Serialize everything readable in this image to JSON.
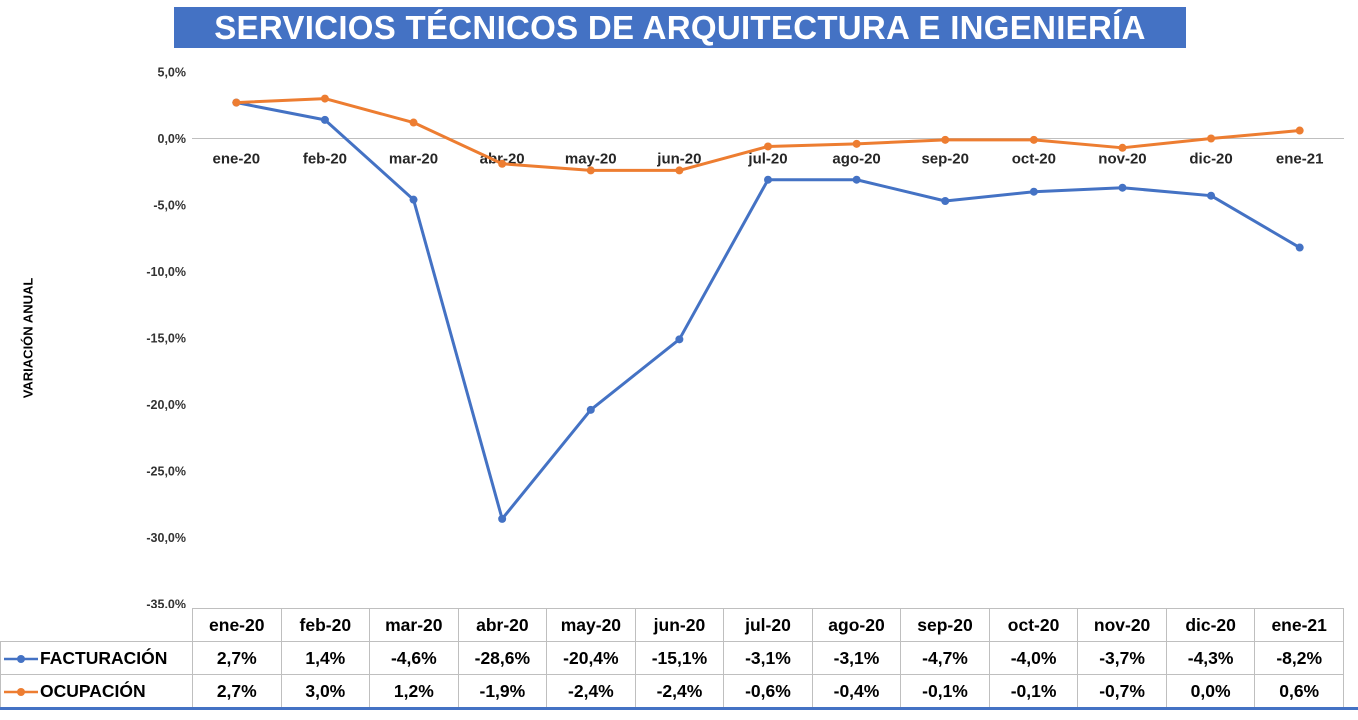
{
  "colors": {
    "accent_blue": "#4472C4",
    "accent_orange": "#ED7D31",
    "title_bg": "#4472C4",
    "title_text": "#FFFFFF",
    "axis_line": "#BFBFBF",
    "table_border": "#BFBFBF"
  },
  "chart_data": {
    "type": "line",
    "title": "SERVICIOS TÉCNICOS DE ARQUITECTURA E INGENIERÍA",
    "categories": [
      "ene-20",
      "feb-20",
      "mar-20",
      "abr-20",
      "may-20",
      "jun-20",
      "jul-20",
      "ago-20",
      "sep-20",
      "oct-20",
      "nov-20",
      "dic-20",
      "ene-21"
    ],
    "series": [
      {
        "key": "facturacion",
        "name": "FACTURACIÓN",
        "color": "#4472C4",
        "values": [
          2.7,
          1.4,
          -4.6,
          -28.6,
          -20.4,
          -15.1,
          -3.1,
          -3.1,
          -4.7,
          -4.0,
          -3.7,
          -4.3,
          -8.2
        ],
        "labels": [
          "2,7%",
          "1,4%",
          "-4,6%",
          "-28,6%",
          "-20,4%",
          "-15,1%",
          "-3,1%",
          "-3,1%",
          "-4,7%",
          "-4,0%",
          "-3,7%",
          "-4,3%",
          "-8,2%"
        ]
      },
      {
        "key": "ocupacion",
        "name": "OCUPACIÓN",
        "color": "#ED7D31",
        "values": [
          2.7,
          3.0,
          1.2,
          -1.9,
          -2.4,
          -2.4,
          -0.6,
          -0.4,
          -0.1,
          -0.1,
          -0.7,
          0.0,
          0.6
        ],
        "labels": [
          "2,7%",
          "3,0%",
          "1,2%",
          "-1,9%",
          "-2,4%",
          "-2,4%",
          "-0,6%",
          "-0,4%",
          "-0,1%",
          "-0,1%",
          "-0,7%",
          "0,0%",
          "0,6%"
        ]
      }
    ],
    "xlabel": "",
    "ylabel": "VARIACIÓN ANUAL",
    "ylim": [
      -35,
      5
    ],
    "ytick_step": 5,
    "ytick_labels": [
      "5,0%",
      "0,0%",
      "-5,0%",
      "-10,0%",
      "-15,0%",
      "-20,0%",
      "-25,0%",
      "-30,0%",
      "-35,0%"
    ],
    "grid": false,
    "legend_position": "data-table-left",
    "marker": "circle"
  }
}
